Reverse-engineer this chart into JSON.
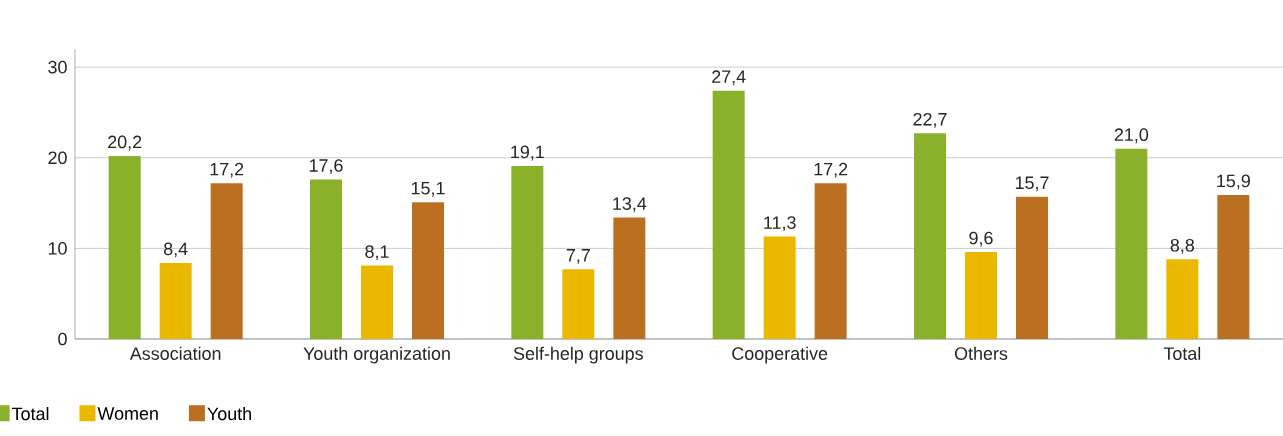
{
  "chart_data": {
    "type": "bar",
    "categories": [
      "Association",
      "Youth organization",
      "Self-help groups",
      "Cooperative",
      "Others",
      "Total"
    ],
    "series": [
      {
        "name": "Total",
        "color": "#8bb02a",
        "values": [
          20.2,
          17.6,
          19.1,
          27.4,
          22.7,
          21.0
        ],
        "value_labels": [
          "20,2",
          "17,6",
          "19,1",
          "27,4",
          "22,7",
          "21,0"
        ]
      },
      {
        "name": "Women",
        "color": "#ebb800",
        "values": [
          8.4,
          8.1,
          7.7,
          11.3,
          9.6,
          8.8
        ],
        "value_labels": [
          "8,4",
          "8,1",
          "7,7",
          "11,3",
          "9,6",
          "8,8"
        ]
      },
      {
        "name": "Youth",
        "color": "#bb7021",
        "values": [
          17.2,
          15.1,
          13.4,
          17.2,
          15.7,
          15.9
        ],
        "value_labels": [
          "17,2",
          "15,1",
          "13,4",
          "17,2",
          "15,7",
          "15,9"
        ]
      }
    ],
    "ylim": [
      0,
      32
    ],
    "yticks": [
      0,
      10,
      20,
      30
    ],
    "grid": "y",
    "legend": "bottom left"
  }
}
